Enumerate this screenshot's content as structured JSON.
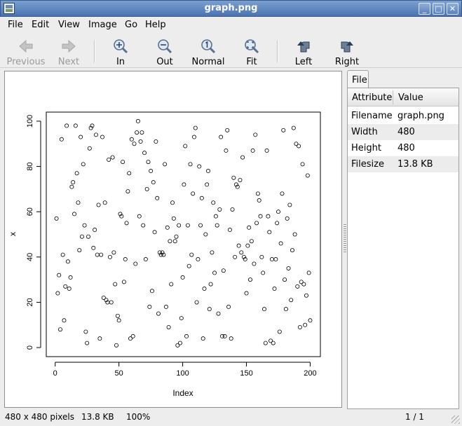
{
  "window": {
    "title": "graph.png"
  },
  "menu": [
    "File",
    "Edit",
    "View",
    "Image",
    "Go",
    "Help"
  ],
  "toolbar": {
    "previous": "Previous",
    "next": "Next",
    "zoom_in": "In",
    "zoom_out": "Out",
    "normal": "Normal",
    "fit": "Fit",
    "rotate_left": "Left",
    "rotate_right": "Right"
  },
  "sidebar": {
    "tab": "File",
    "columns": [
      "Attribute",
      "Value"
    ],
    "rows": [
      {
        "attribute": "Filename",
        "value": "graph.png"
      },
      {
        "attribute": "Width",
        "value": "480"
      },
      {
        "attribute": "Height",
        "value": "480"
      },
      {
        "attribute": "Filesize",
        "value": "13.8 KB"
      }
    ]
  },
  "status": {
    "dimensions": "480 x 480 pixels",
    "filesize": "13.8 KB",
    "zoom": "100%",
    "page": "1 / 1"
  },
  "chart_data": {
    "type": "scatter",
    "xlabel": "Index",
    "ylabel": "x",
    "xlim": [
      -7,
      208
    ],
    "ylim": [
      -4,
      104
    ],
    "xticks": [
      0,
      50,
      100,
      150,
      200
    ],
    "yticks": [
      0,
      20,
      40,
      60,
      80,
      100
    ],
    "marker": "open-circle",
    "x": [
      1,
      2,
      3,
      4,
      5,
      6,
      7,
      8,
      9,
      10,
      11,
      12,
      13,
      14,
      15,
      16,
      17,
      18,
      19,
      20,
      21,
      22,
      23,
      24,
      25,
      26,
      27,
      28,
      29,
      30,
      31,
      32,
      33,
      34,
      35,
      36,
      37,
      38,
      39,
      40,
      41,
      42,
      43,
      44,
      45,
      46,
      47,
      48,
      49,
      50,
      51,
      52,
      53,
      54,
      55,
      56,
      57,
      58,
      59,
      60,
      61,
      62,
      63,
      64,
      65,
      66,
      67,
      68,
      69,
      70,
      71,
      72,
      73,
      74,
      75,
      76,
      77,
      78,
      79,
      80,
      81,
      82,
      83,
      84,
      85,
      86,
      87,
      88,
      89,
      90,
      91,
      92,
      93,
      94,
      95,
      96,
      97,
      98,
      99,
      100,
      101,
      102,
      103,
      104,
      105,
      106,
      107,
      108,
      109,
      110,
      111,
      112,
      113,
      114,
      115,
      116,
      117,
      118,
      119,
      120,
      121,
      122,
      123,
      124,
      125,
      126,
      127,
      128,
      129,
      130,
      131,
      132,
      133,
      134,
      135,
      136,
      137,
      138,
      139,
      140,
      141,
      142,
      143,
      144,
      145,
      146,
      147,
      148,
      149,
      150,
      151,
      152,
      153,
      154,
      155,
      156,
      157,
      158,
      159,
      160,
      161,
      162,
      163,
      164,
      165,
      166,
      167,
      168,
      169,
      170,
      171,
      172,
      173,
      174,
      175,
      176,
      177,
      178,
      179,
      180,
      181,
      182,
      183,
      184,
      185,
      186,
      187,
      188,
      189,
      190,
      191,
      192,
      193,
      194,
      195,
      196,
      197,
      198,
      199,
      200
    ],
    "y": [
      57,
      24,
      32,
      8,
      92,
      41,
      12,
      27,
      98,
      38,
      26,
      31,
      71,
      73,
      59,
      98,
      77,
      64,
      43,
      93,
      49,
      81,
      54,
      7,
      2,
      49,
      88,
      97,
      98,
      44,
      52,
      94,
      41,
      63,
      4,
      41,
      93,
      22,
      64,
      21,
      20,
      83,
      40,
      20,
      84,
      42,
      28,
      1,
      14,
      12,
      59,
      58,
      82,
      29,
      39,
      55,
      69,
      77,
      4,
      92,
      5,
      90,
      37,
      95,
      100,
      58,
      91,
      95,
      54,
      86,
      39,
      70,
      82,
      18,
      78,
      25,
      73,
      51,
      91,
      66,
      15,
      42,
      41,
      42,
      41,
      81,
      18,
      53,
      9,
      47,
      28,
      64,
      57,
      47,
      49,
      1,
      54,
      2,
      13,
      31,
      72,
      89,
      5,
      54,
      36,
      81,
      41,
      68,
      93,
      97,
      20,
      39,
      80,
      54,
      66,
      4,
      26,
      50,
      72,
      78,
      17,
      28,
      42,
      64,
      33,
      58,
      54,
      15,
      61,
      93,
      5,
      34,
      5,
      87,
      96,
      18,
      52,
      4,
      61,
      75,
      40,
      72,
      71,
      45,
      74,
      42,
      84,
      40,
      39,
      24,
      45,
      53,
      30,
      47,
      87,
      37,
      94,
      55,
      68,
      65,
      58,
      40,
      33,
      17,
      2,
      87,
      58,
      51,
      3,
      39,
      2,
      26,
      39,
      55,
      60,
      7,
      46,
      68,
      96,
      30,
      17,
      57,
      35,
      63,
      21,
      43,
      97,
      50,
      90,
      27,
      89,
      9,
      29,
      81,
      28,
      10,
      23,
      76,
      33,
      12
    ]
  }
}
